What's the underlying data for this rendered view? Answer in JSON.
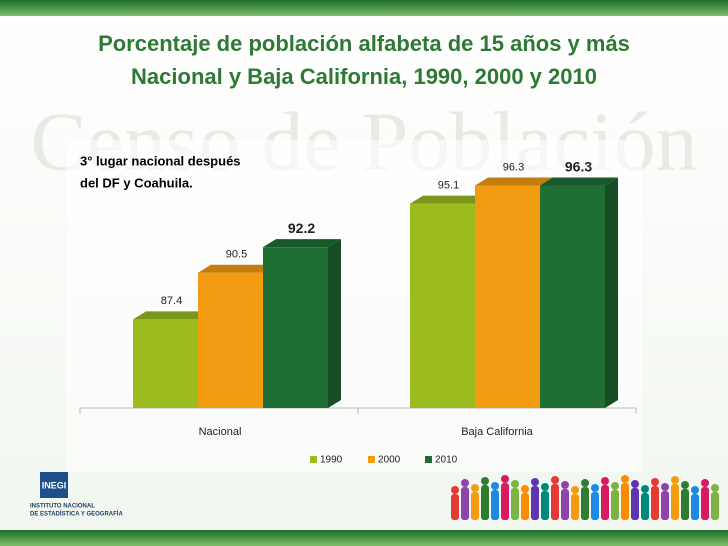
{
  "chart_data": {
    "type": "bar3d",
    "title": "Porcentaje de población alfabeta de 15 años y más",
    "subtitle": "Nacional y Baja California, 1990, 2000 y 2010",
    "annotation": [
      "3°  lugar  nacional  después",
      "del DF y Coahuila."
    ],
    "watermark": "Censo de Población",
    "categories": [
      "Nacional",
      "Baja California"
    ],
    "series": [
      {
        "name": "1990",
        "color": "#9bbb1e",
        "values": [
          87.4,
          95.1
        ]
      },
      {
        "name": "2000",
        "color": "#f39c12",
        "values": [
          90.5,
          96.3
        ]
      },
      {
        "name": "2010",
        "color": "#1f6e34",
        "values": [
          92.2,
          96.3
        ]
      }
    ],
    "ylim": [
      81.5,
      98
    ],
    "legend": "bottom",
    "logo": {
      "name": "INEGI",
      "lines": [
        "INSTITUTO NACIONAL",
        "DE ESTADÍSTICA Y GEOGRAFÍA"
      ]
    }
  }
}
